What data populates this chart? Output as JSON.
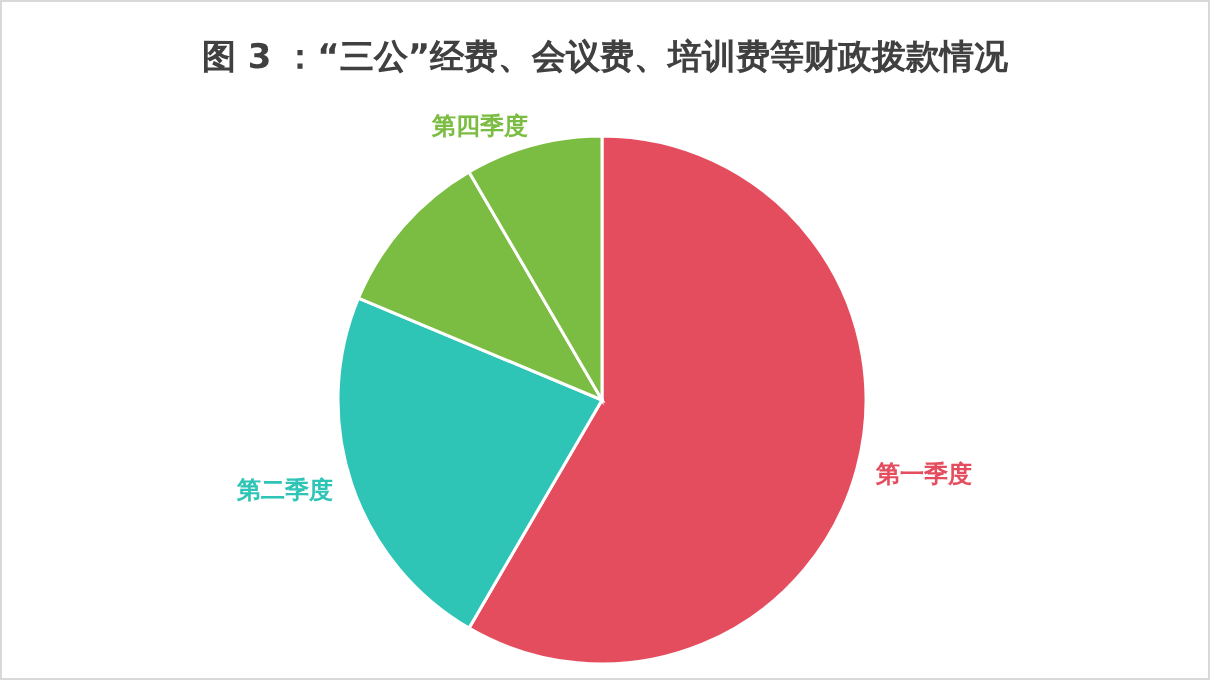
{
  "chart_data": {
    "type": "pie",
    "title": "图 3 ：“三公”经费、会议费、培训费等财政拨款情况",
    "categories": [
      "第一季度",
      "第二季度",
      null,
      "第四季度"
    ],
    "values": [
      58.4,
      22.9,
      10.3,
      8.4
    ],
    "colors": [
      "#e44d5e",
      "#2ec4b6",
      "#7bbd42",
      "#7bbd42"
    ]
  }
}
